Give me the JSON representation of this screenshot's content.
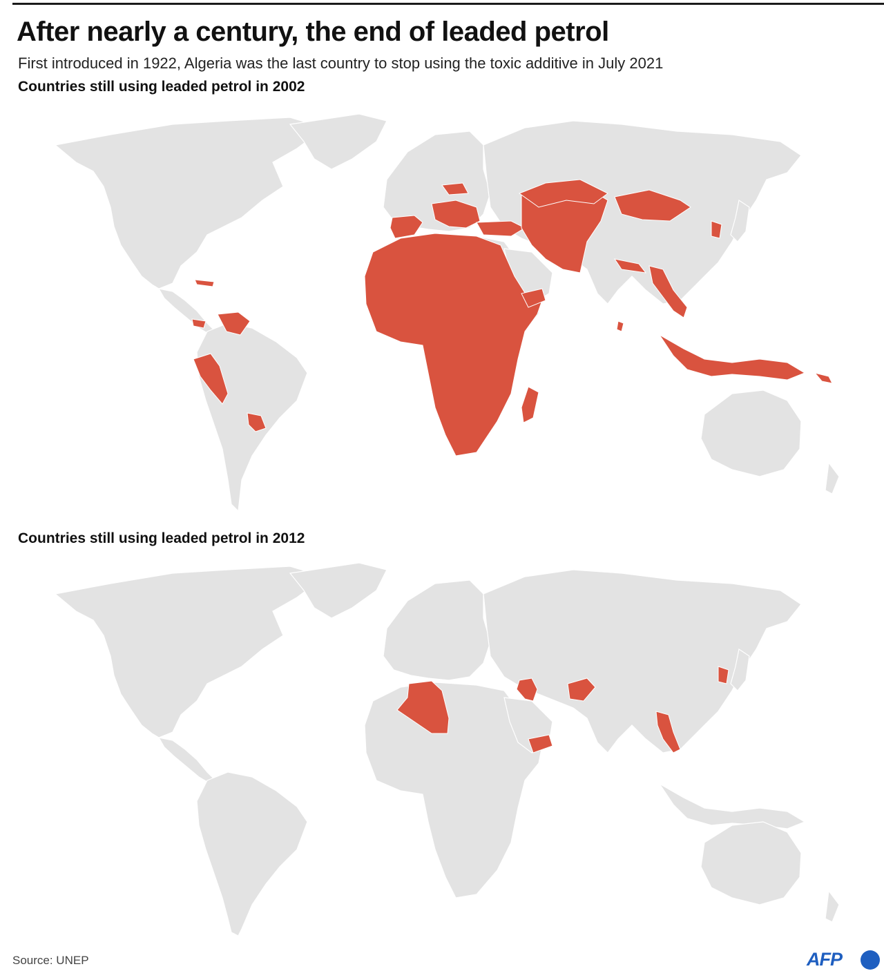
{
  "header": {
    "title": "After nearly a century, the end of leaded petrol",
    "subtitle": "First introduced in 1922, Algeria was the last country to stop using the toxic additive in July 2021"
  },
  "maps": [
    {
      "title": "Countries still using leaded petrol in 2002",
      "year": 2002
    },
    {
      "title": "Countries still using leaded petrol in 2012",
      "year": 2012
    }
  ],
  "footer": {
    "source": "Source: UNEP",
    "logo_text": "AFP"
  },
  "colors": {
    "land": "#e3e3e3",
    "leaded": "#d9533f",
    "logo": "#1f5fc0"
  }
}
